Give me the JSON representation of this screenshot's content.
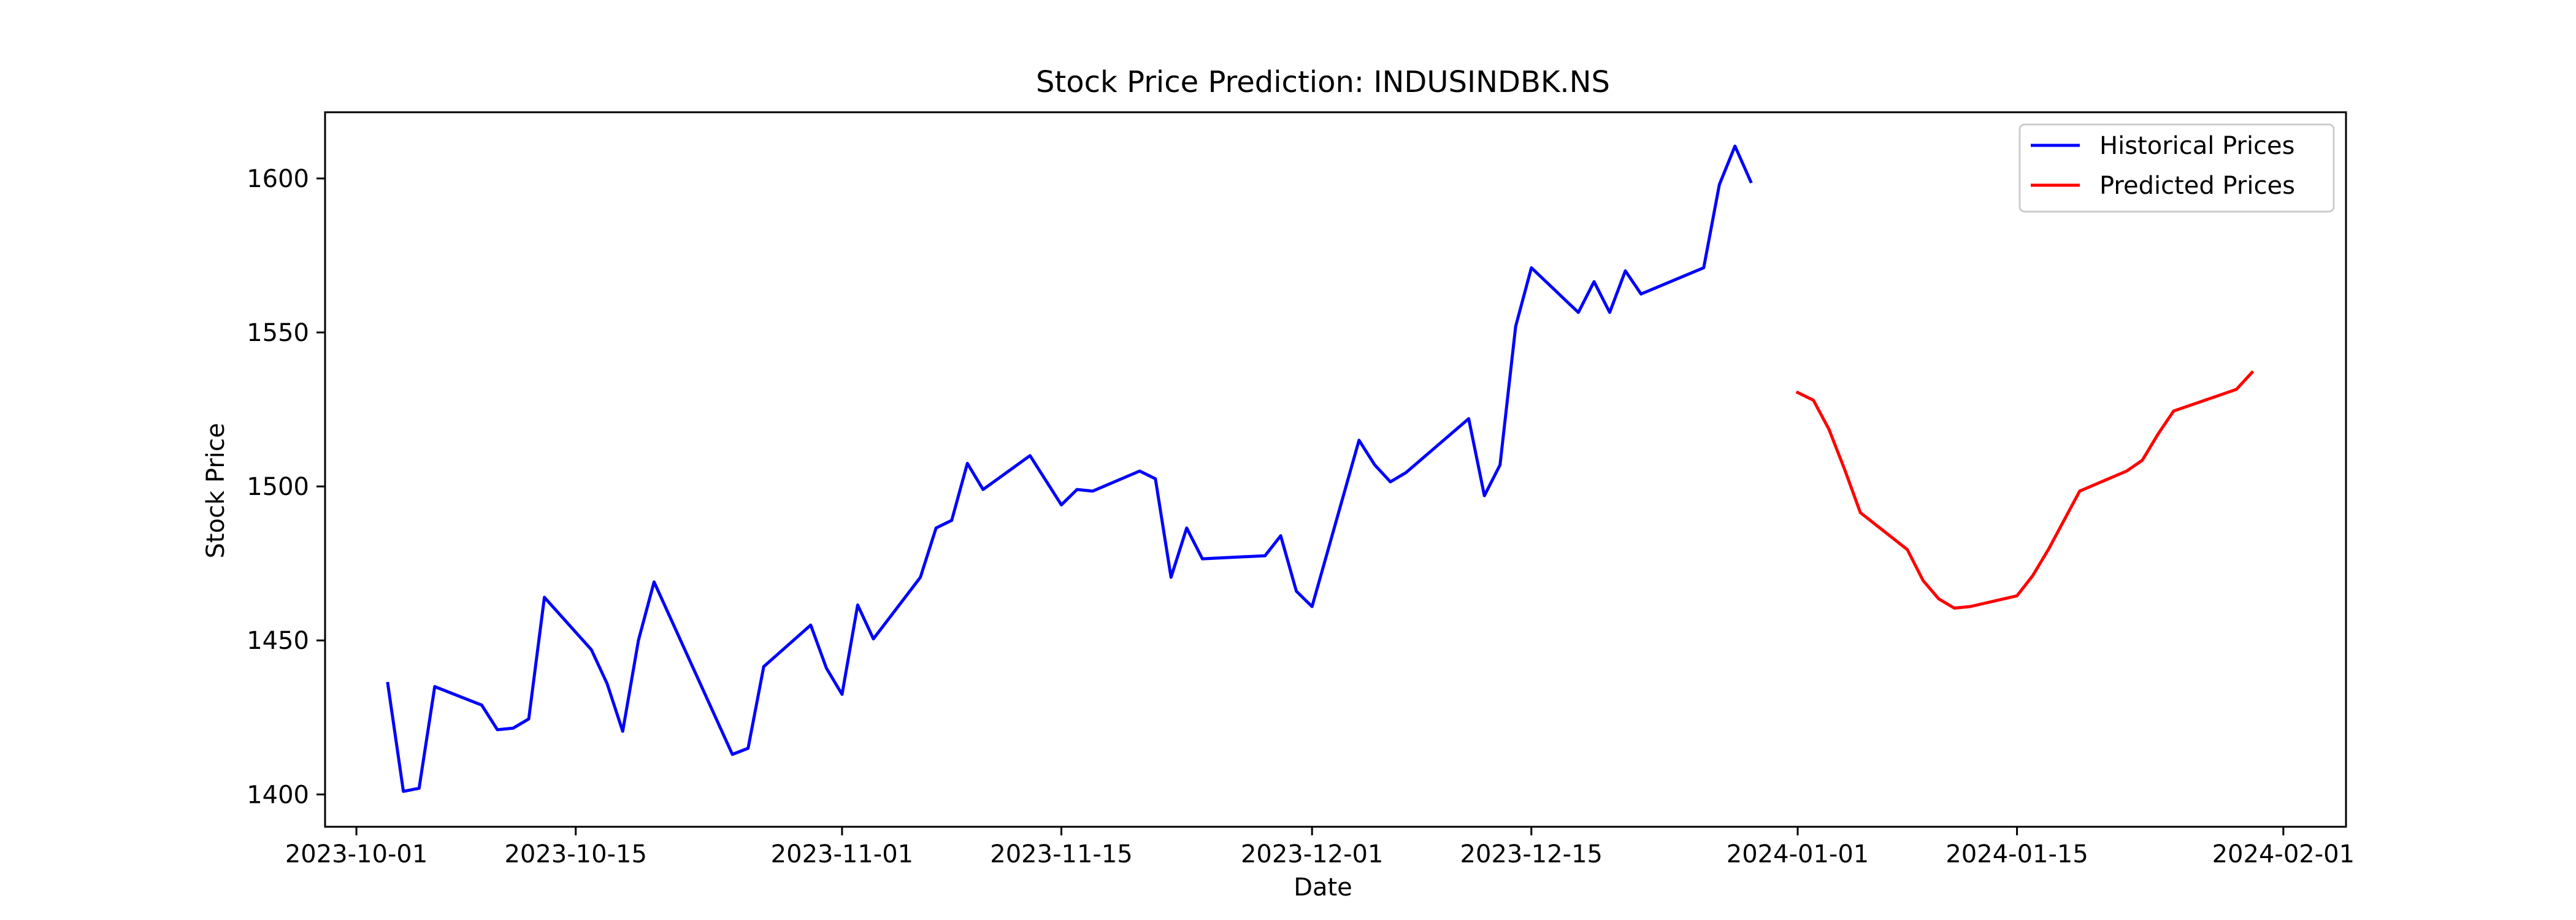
{
  "chart_data": {
    "type": "line",
    "title": "Stock Price Prediction: INDUSINDBK.NS",
    "xlabel": "Date",
    "ylabel": "Stock Price",
    "xlim": [
      "2023-09-29",
      "2024-02-05"
    ],
    "ylim": [
      1389.5,
      1621.5
    ],
    "x_ticks": [
      "2023-10-01",
      "2023-10-15",
      "2023-11-01",
      "2023-11-15",
      "2023-12-01",
      "2023-12-15",
      "2024-01-01",
      "2024-01-15",
      "2024-02-01"
    ],
    "y_ticks": [
      1400,
      1450,
      1500,
      1550,
      1600
    ],
    "grid": false,
    "legend_position": "top-right",
    "series": [
      {
        "name": "Historical Prices",
        "color": "#0000ff",
        "points": [
          [
            "2023-10-03",
            1436
          ],
          [
            "2023-10-04",
            1401
          ],
          [
            "2023-10-05",
            1402
          ],
          [
            "2023-10-06",
            1435
          ],
          [
            "2023-10-09",
            1429
          ],
          [
            "2023-10-10",
            1421
          ],
          [
            "2023-10-11",
            1421.5
          ],
          [
            "2023-10-12",
            1424.5
          ],
          [
            "2023-10-13",
            1464
          ],
          [
            "2023-10-16",
            1447
          ],
          [
            "2023-10-17",
            1436
          ],
          [
            "2023-10-18",
            1420.5
          ],
          [
            "2023-10-19",
            1450
          ],
          [
            "2023-10-20",
            1469
          ],
          [
            "2023-10-25",
            1413
          ],
          [
            "2023-10-26",
            1415
          ],
          [
            "2023-10-27",
            1441.5
          ],
          [
            "2023-10-30",
            1455
          ],
          [
            "2023-10-31",
            1441
          ],
          [
            "2023-11-01",
            1432.5
          ],
          [
            "2023-11-02",
            1461.5
          ],
          [
            "2023-11-03",
            1450.5
          ],
          [
            "2023-11-06",
            1470.5
          ],
          [
            "2023-11-07",
            1486.5
          ],
          [
            "2023-11-08",
            1489
          ],
          [
            "2023-11-09",
            1507.5
          ],
          [
            "2023-11-10",
            1499
          ],
          [
            "2023-11-13",
            1510
          ],
          [
            "2023-11-15",
            1494
          ],
          [
            "2023-11-16",
            1499
          ],
          [
            "2023-11-17",
            1498.5
          ],
          [
            "2023-11-20",
            1505
          ],
          [
            "2023-11-21",
            1502.5
          ],
          [
            "2023-11-22",
            1470.5
          ],
          [
            "2023-11-23",
            1486.5
          ],
          [
            "2023-11-24",
            1476.5
          ],
          [
            "2023-11-28",
            1477.5
          ],
          [
            "2023-11-29",
            1484
          ],
          [
            "2023-11-30",
            1466
          ],
          [
            "2023-12-01",
            1461
          ],
          [
            "2023-12-04",
            1515
          ],
          [
            "2023-12-05",
            1507
          ],
          [
            "2023-12-06",
            1501.5
          ],
          [
            "2023-12-07",
            1504.5
          ],
          [
            "2023-12-11",
            1522
          ],
          [
            "2023-12-12",
            1497
          ],
          [
            "2023-12-13",
            1507
          ],
          [
            "2023-12-14",
            1552
          ],
          [
            "2023-12-15",
            1571
          ],
          [
            "2023-12-18",
            1556.5
          ],
          [
            "2023-12-19",
            1566.5
          ],
          [
            "2023-12-20",
            1556.5
          ],
          [
            "2023-12-21",
            1570
          ],
          [
            "2023-12-22",
            1562.5
          ],
          [
            "2023-12-26",
            1571
          ],
          [
            "2023-12-27",
            1598
          ],
          [
            "2023-12-28",
            1610.5
          ],
          [
            "2023-12-29",
            1599
          ]
        ]
      },
      {
        "name": "Predicted Prices",
        "color": "#ff0000",
        "points": [
          [
            "2024-01-01",
            1530.5
          ],
          [
            "2024-01-02",
            1528
          ],
          [
            "2024-01-03",
            1518.5
          ],
          [
            "2024-01-04",
            1505.5
          ],
          [
            "2024-01-05",
            1491.5
          ],
          [
            "2024-01-08",
            1479.5
          ],
          [
            "2024-01-09",
            1469.5
          ],
          [
            "2024-01-10",
            1463.5
          ],
          [
            "2024-01-11",
            1460.5
          ],
          [
            "2024-01-12",
            1461
          ],
          [
            "2024-01-15",
            1464.5
          ],
          [
            "2024-01-16",
            1471
          ],
          [
            "2024-01-17",
            1479.5
          ],
          [
            "2024-01-18",
            1489
          ],
          [
            "2024-01-19",
            1498.5
          ],
          [
            "2024-01-22",
            1505
          ],
          [
            "2024-01-23",
            1508.5
          ],
          [
            "2024-01-24",
            1517
          ],
          [
            "2024-01-25",
            1524.5
          ],
          [
            "2024-01-29",
            1531.5
          ],
          [
            "2024-01-30",
            1537
          ]
        ]
      }
    ]
  }
}
